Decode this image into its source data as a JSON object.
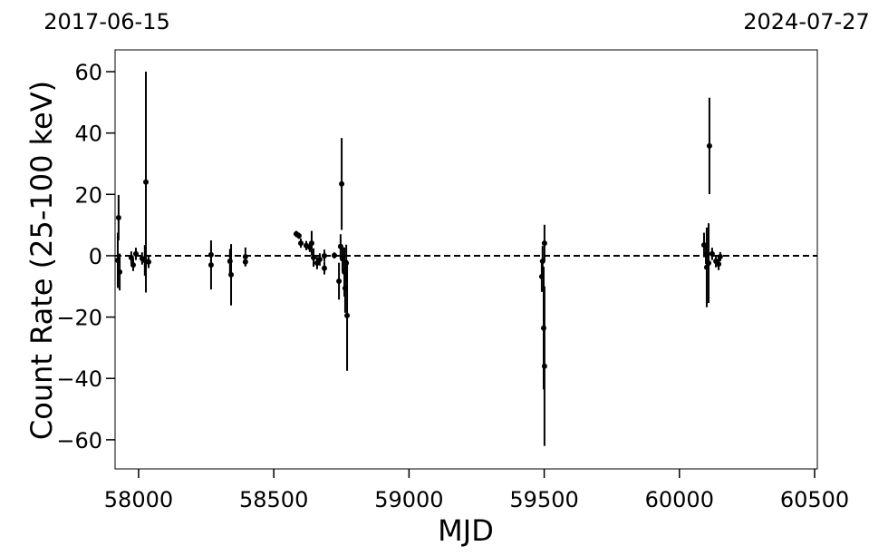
{
  "chart_data": {
    "type": "errorbar",
    "top_labels": [
      "2017-06-15",
      "2024-07-27"
    ],
    "xlabel": "MJD",
    "ylabel": "Count Rate (25-100 keV)",
    "x": [
      57926,
      57923,
      57930,
      57973,
      57980,
      57990,
      58013,
      58027,
      58023,
      58037,
      58268,
      58268,
      58338,
      58342,
      58395,
      58395,
      58583,
      58593,
      58600,
      58620,
      58633,
      58640,
      58647,
      58660,
      58670,
      58687,
      58687,
      58724,
      58741,
      58747,
      58751,
      58754,
      58761,
      58764,
      58771,
      58768,
      59491,
      59494,
      59501,
      59498,
      59501,
      60091,
      60098,
      60101,
      60108,
      60111,
      60121,
      60135,
      60145,
      60151
    ],
    "series": [
      {
        "color": "#000000",
        "values": [
          12.4,
          -1.5,
          -5.3,
          -0.6,
          -3,
          0.6,
          -0.9,
          24,
          -1.5,
          -2,
          -3,
          0.3,
          -1.8,
          -6.2,
          -0.3,
          -2,
          7.1,
          6.5,
          4.1,
          3.3,
          2.7,
          4.1,
          -0.6,
          -2.4,
          -1.2,
          -4.1,
          0,
          0.1,
          -8.3,
          3,
          23.4,
          -1,
          -5.3,
          -10.6,
          -19.5,
          -2.4,
          -6.8,
          -1.8,
          4.1,
          -23.6,
          -36,
          3.5,
          0.3,
          -3.8,
          -2.4,
          35.8,
          0.6,
          -1.8,
          -2.7,
          -0.3
        ],
        "errors": [
          7.4,
          9,
          6,
          2,
          2,
          2,
          2,
          36,
          5,
          2,
          8,
          3,
          4,
          10,
          3,
          1.5,
          1,
          1,
          1.5,
          1.5,
          1.5,
          4,
          3,
          2,
          2,
          2,
          2,
          1,
          6,
          4,
          15,
          4,
          8,
          8,
          18,
          6,
          5,
          5,
          6,
          20,
          26,
          4,
          3,
          13,
          13,
          15.7,
          2,
          2,
          2,
          1.5
        ]
      }
    ],
    "hline": 0,
    "xlim": [
      57913,
      60510
    ],
    "ylim": [
      -69.5,
      67.1
    ],
    "xticks": [
      58000,
      58500,
      59000,
      59500,
      60000,
      60500
    ],
    "yticks": [
      {
        "value": -60,
        "label": "−60"
      },
      {
        "value": -40,
        "label": "−40"
      },
      {
        "value": -20,
        "label": "−20"
      },
      0,
      20,
      40,
      60
    ]
  }
}
